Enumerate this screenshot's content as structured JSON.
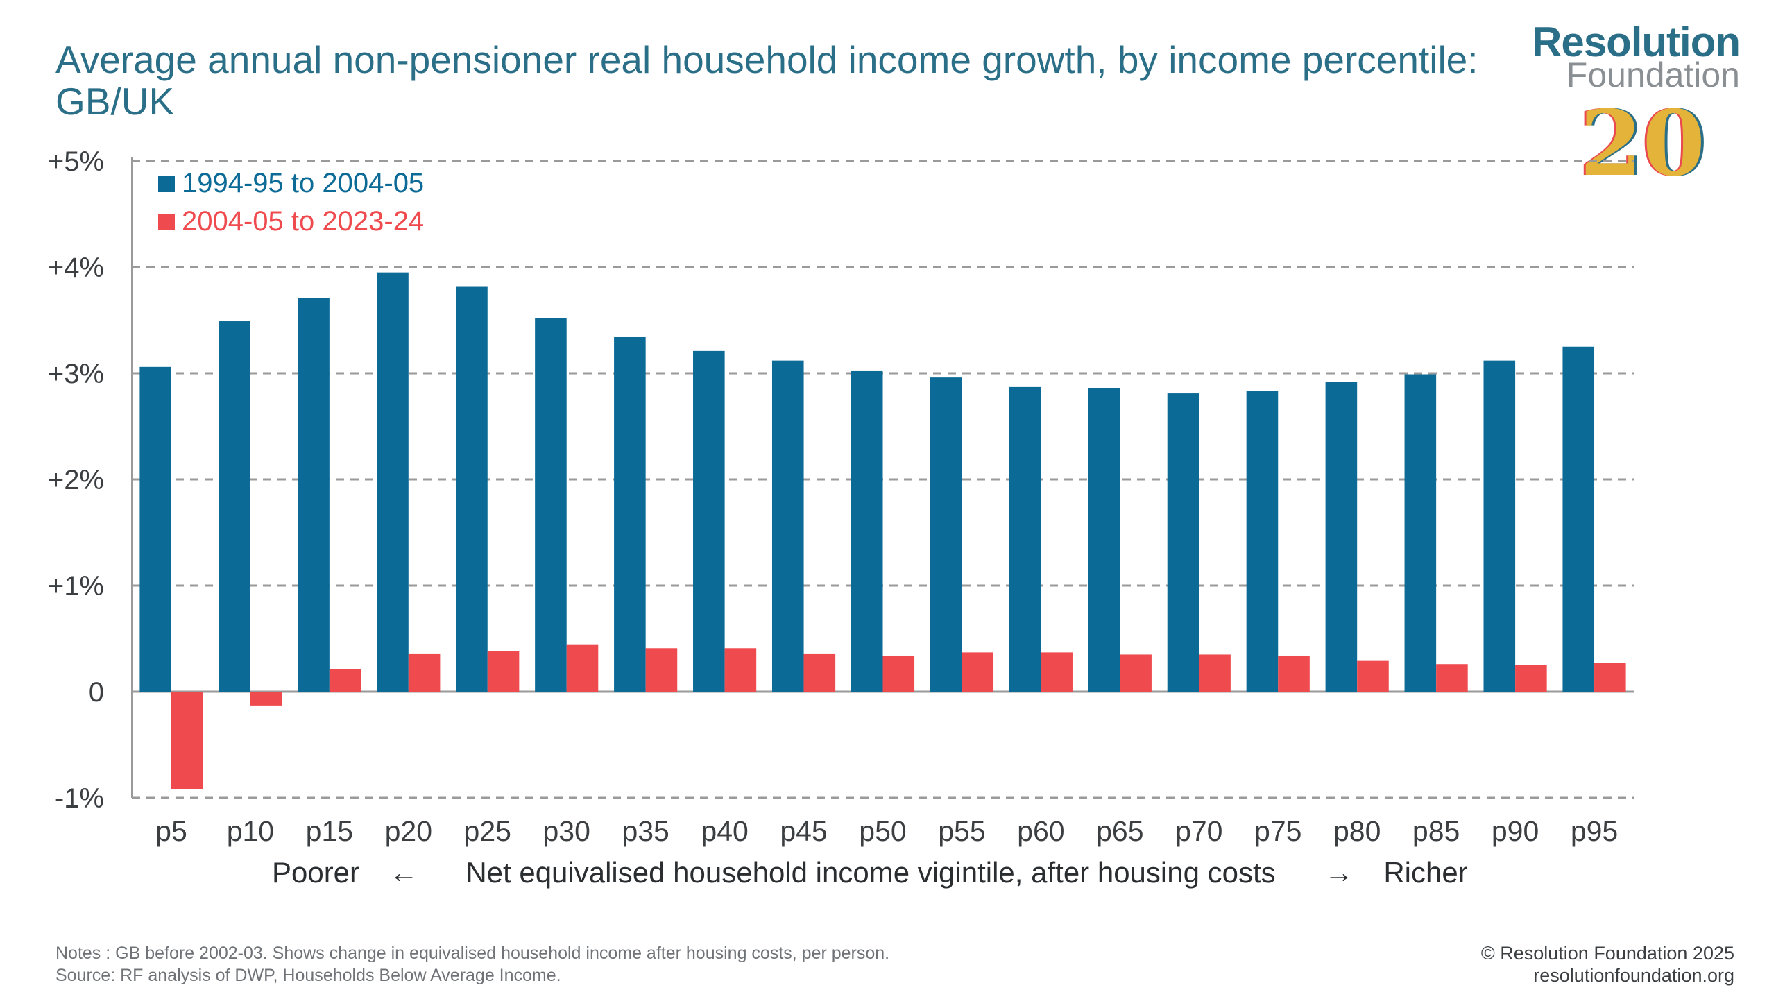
{
  "title": "Average annual non-pensioner real household income growth, by income percentile: GB/UK",
  "logo": {
    "word1": "Resolution",
    "word2": "Foundation",
    "number": "20"
  },
  "chart_data": {
    "type": "bar",
    "title": "Average annual non-pensioner real household income growth, by income percentile: GB/UK",
    "categories": [
      "p5",
      "p10",
      "p15",
      "p20",
      "p25",
      "p30",
      "p35",
      "p40",
      "p45",
      "p50",
      "p55",
      "p60",
      "p65",
      "p70",
      "p75",
      "p80",
      "p85",
      "p90",
      "p95"
    ],
    "series": [
      {
        "name": "1994-95 to 2004-05",
        "color": "#0b6a96",
        "values": [
          3.06,
          3.49,
          3.71,
          3.95,
          3.82,
          3.52,
          3.34,
          3.21,
          3.12,
          3.02,
          2.96,
          2.87,
          2.86,
          2.81,
          2.83,
          2.92,
          2.99,
          3.12,
          3.25
        ]
      },
      {
        "name": "2004-05 to 2023-24",
        "color": "#ef4b4f",
        "values": [
          -0.92,
          -0.13,
          0.21,
          0.36,
          0.38,
          0.44,
          0.41,
          0.41,
          0.36,
          0.34,
          0.37,
          0.37,
          0.35,
          0.35,
          0.34,
          0.29,
          0.26,
          0.25,
          0.27
        ]
      }
    ],
    "ylim": [
      -1,
      5
    ],
    "yticks": [
      -1,
      0,
      1,
      2,
      3,
      4,
      5
    ],
    "ytick_labels": [
      "-1%",
      "0",
      "+1%",
      "+2%",
      "+3%",
      "+4%",
      "+5%"
    ],
    "xlabel": {
      "left": "Poorer",
      "left_arrow": "←",
      "center": "Net equivalised household income vigintile, after housing costs",
      "right_arrow": "→",
      "right": "Richer"
    },
    "legend_position": "top-left",
    "grid": true
  },
  "notes": "Notes : GB before 2002-03. Shows change in equivalised household income after housing costs, per person.",
  "source": "Source: RF analysis of DWP, Households Below Average Income.",
  "copyright": "© Resolution Foundation 2025",
  "website": "resolutionfoundation.org"
}
